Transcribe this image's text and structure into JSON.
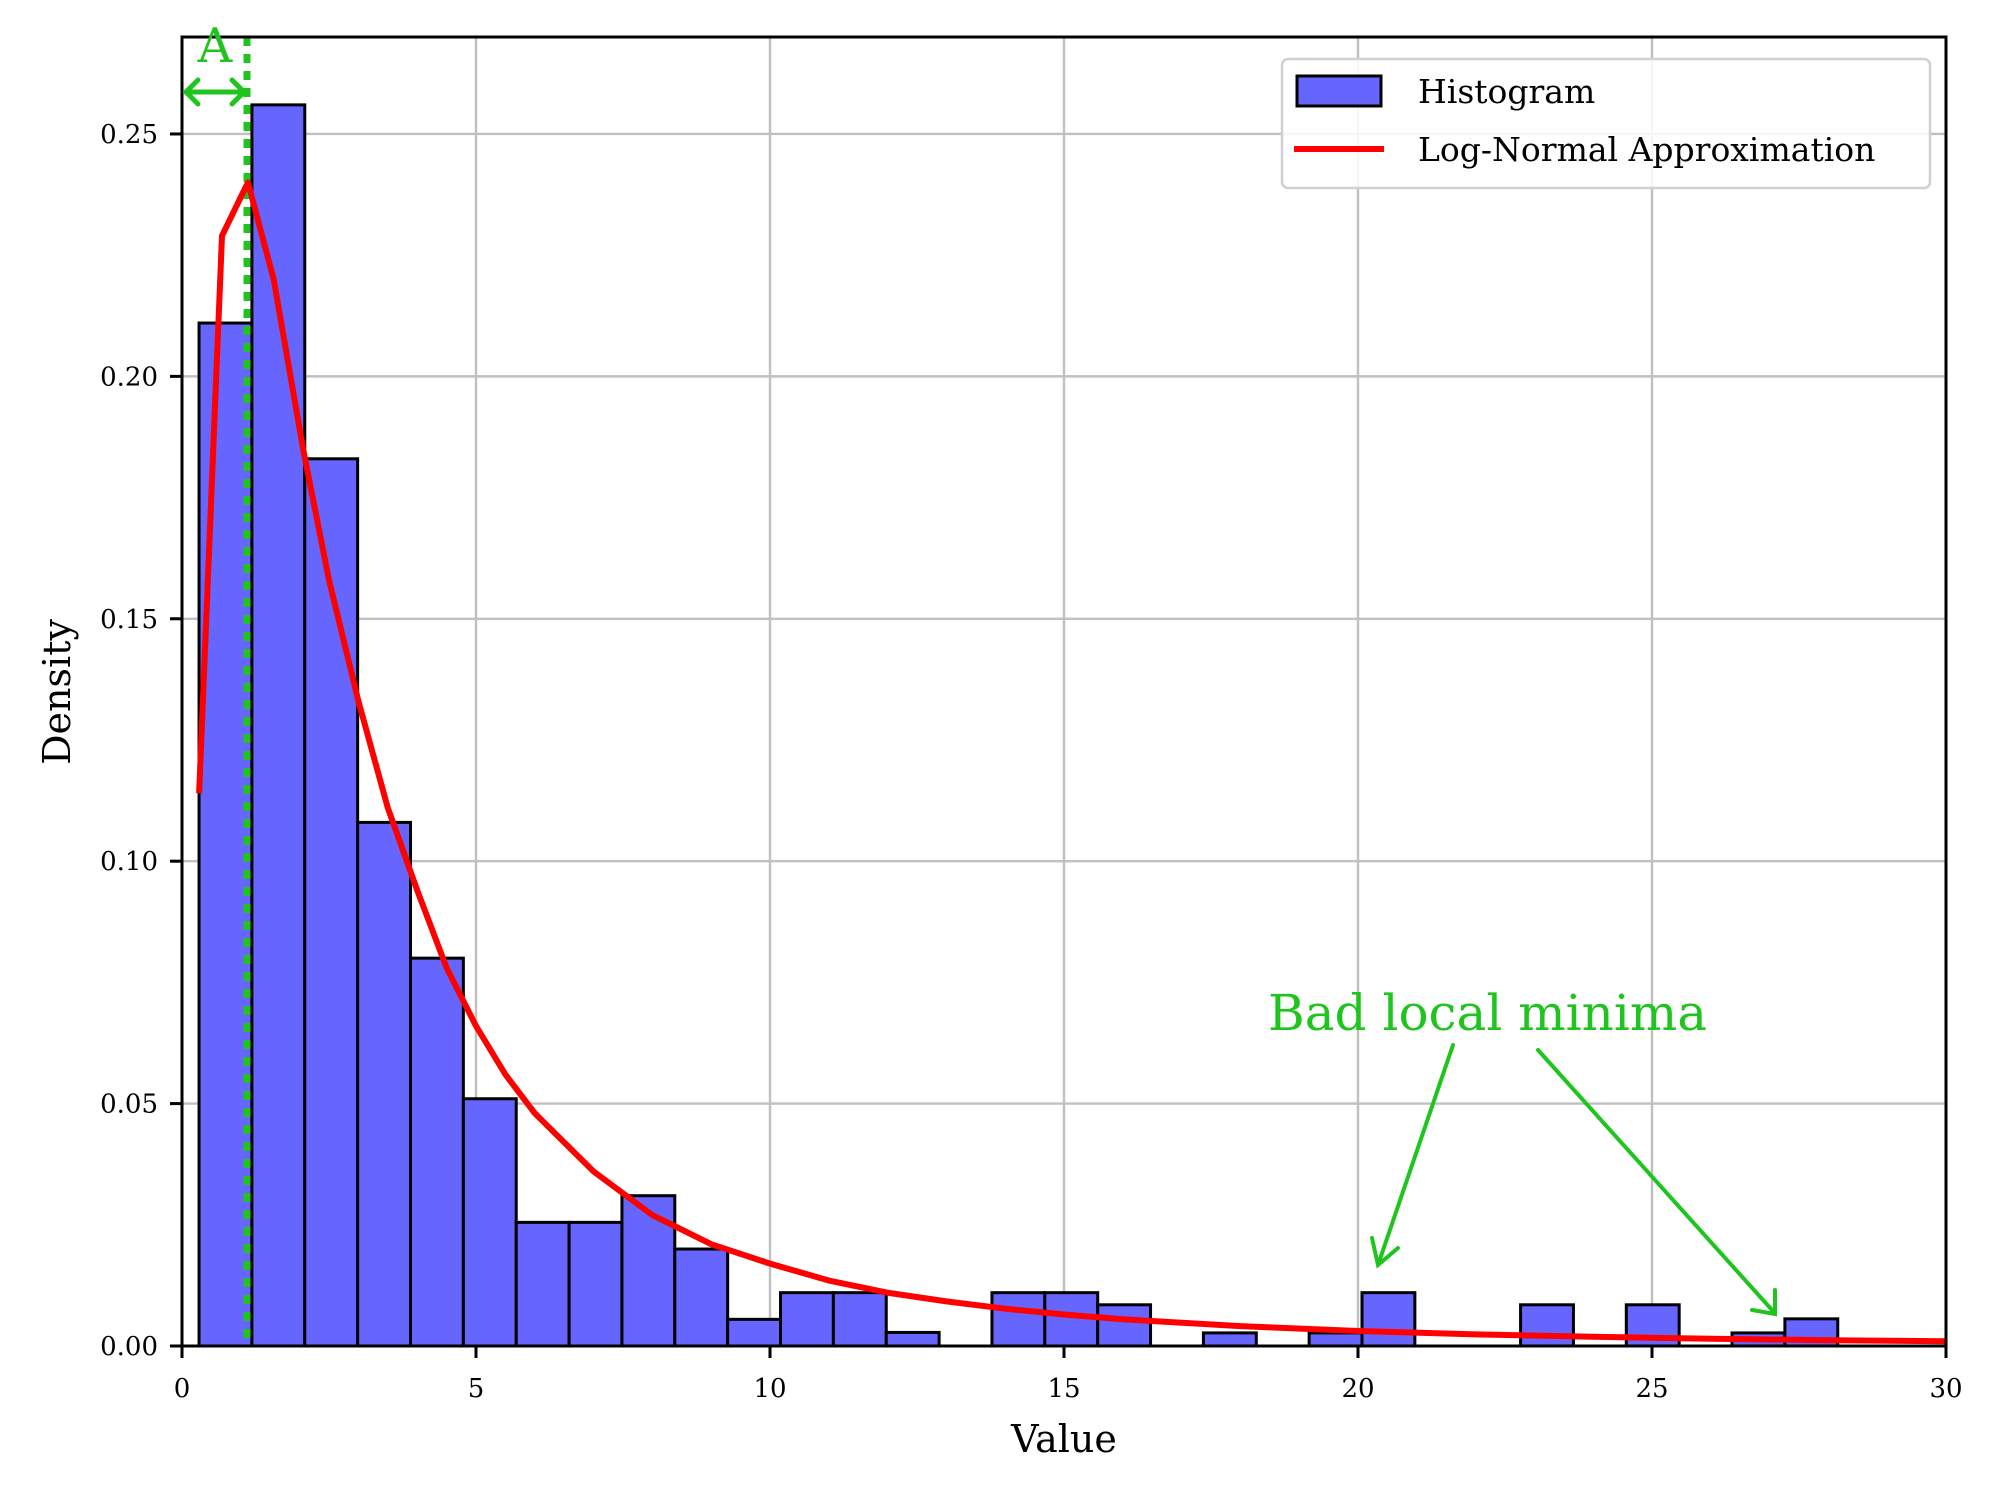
{
  "chart_data": {
    "type": "bar",
    "subtype": "histogram_with_line",
    "title": "",
    "xlabel": "Value",
    "ylabel": "Density",
    "xlim": [
      0,
      30
    ],
    "ylim": [
      0,
      0.27
    ],
    "grid": true,
    "legend_position": "upper right",
    "xticks": [
      0,
      5,
      10,
      15,
      20,
      25,
      30
    ],
    "xtick_labels": [
      "0",
      "5",
      "10",
      "15",
      "20",
      "25",
      "30"
    ],
    "yticks": [
      0.0,
      0.05,
      0.1,
      0.15,
      0.2,
      0.25
    ],
    "ytick_labels": [
      "0.00",
      "0.05",
      "0.10",
      "0.15",
      "0.20",
      "0.25"
    ],
    "series": [
      {
        "name": "Histogram",
        "type": "histogram",
        "color": "#6666ff",
        "edgecolor": "#000000",
        "bin_start": 0.29,
        "bin_width": 0.899,
        "values": [
          0.211,
          0.256,
          0.183,
          0.108,
          0.08,
          0.051,
          0.0255,
          0.0255,
          0.031,
          0.02,
          0.0055,
          0.011,
          0.011,
          0.0028,
          0.0,
          0.011,
          0.011,
          0.0085,
          0.0,
          0.0027,
          0.0,
          0.0027,
          0.011,
          0.0,
          0.0,
          0.0085,
          0.0,
          0.0085,
          0.0,
          0.0027,
          0.0056
        ]
      },
      {
        "name": "Log-Normal Approximation",
        "type": "line",
        "color": "#ff0000",
        "x": [
          0.29,
          0.68,
          1.12,
          1.56,
          2.06,
          2.5,
          3.0,
          3.5,
          4.0,
          4.5,
          5.0,
          5.5,
          6.0,
          7.0,
          8.0,
          9.0,
          10.0,
          11.0,
          12.0,
          13.0,
          14.0,
          15.0,
          16.0,
          18.0,
          20.0,
          22.0,
          24.0,
          26.0,
          28.0,
          30.0
        ],
        "y": [
          0.114,
          0.229,
          0.24,
          0.22,
          0.185,
          0.158,
          0.133,
          0.111,
          0.094,
          0.078,
          0.066,
          0.056,
          0.048,
          0.036,
          0.027,
          0.021,
          0.017,
          0.0135,
          0.011,
          0.0092,
          0.0077,
          0.0065,
          0.0055,
          0.0041,
          0.0031,
          0.0024,
          0.0019,
          0.0015,
          0.0012,
          0.001
        ]
      }
    ],
    "annotations": [
      {
        "text": "A",
        "type": "double-arrow",
        "x_from": 0.0,
        "x_to": 1.12,
        "y": 0.259,
        "color": "#1fc41f"
      },
      {
        "type": "vline",
        "x": 1.12,
        "style": "dotted",
        "color": "#1fc41f"
      },
      {
        "text": "Bad local minima",
        "x": 18.4,
        "y": 0.066,
        "color": "#1fc41f",
        "arrows_to": [
          {
            "x": 20.3,
            "y": 0.0165
          },
          {
            "x": 27.1,
            "y": 0.0068
          }
        ]
      }
    ]
  },
  "legend": {
    "items": [
      {
        "label": "Histogram",
        "kind": "patch",
        "color": "#6666ff"
      },
      {
        "label": "Log-Normal Approximation",
        "kind": "line",
        "color": "#ff0000"
      }
    ]
  },
  "colors": {
    "bar_fill": "#6666ff",
    "curve": "#ff0000",
    "annotation": "#1fc41f",
    "grid": "#c0c0c0"
  }
}
